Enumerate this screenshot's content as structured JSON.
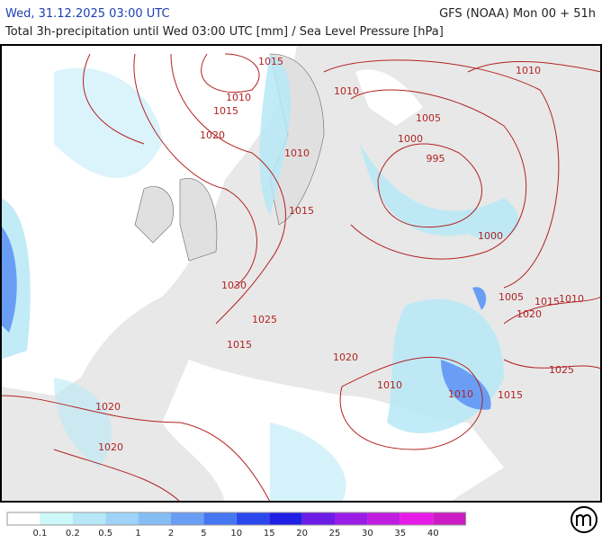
{
  "header": {
    "left": "Wed, 31.12.2025 03:00 UTC",
    "right": "GFS (NOAA) Mon 00 + 51h",
    "subtitle": "Total 3h-precipitation until Wed 03:00 UTC [mm] / Sea Level Pressure [hPa]"
  },
  "isobar_labels": [
    "1015",
    "1010",
    "1015",
    "1020",
    "1010",
    "1005",
    "1000",
    "995",
    "1010",
    "1015",
    "1000",
    "1030",
    "1025",
    "1015",
    "1020",
    "1010",
    "1010",
    "1015",
    "1020",
    "1020",
    "1005",
    "1015",
    "1010",
    "1020",
    "1025",
    "1010"
  ],
  "isobar_color": "#b22222",
  "legend": {
    "colors": [
      "#ffffff",
      "#ccf8fa",
      "#b8e8f7",
      "#9fd3f7",
      "#86bdf5",
      "#6a9ef5",
      "#4677f2",
      "#2a48ee",
      "#1f1fe6",
      "#6b1de6",
      "#9a1de6",
      "#c01de0",
      "#e81ae6",
      "#cc1ac4"
    ],
    "labels": [
      "0.1",
      "0.2",
      "0.5",
      "1",
      "2",
      "5",
      "10",
      "15",
      "20",
      "25",
      "30",
      "35",
      "40"
    ]
  }
}
